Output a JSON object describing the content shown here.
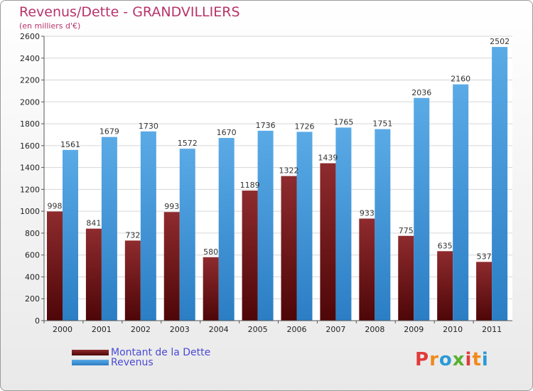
{
  "title": "Revenus/Dette - GRANDVILLIERS",
  "subtitle": "(en milliers d'€)",
  "logo": {
    "letters": [
      "P",
      "r",
      "o",
      "x",
      "i",
      "t",
      "i"
    ],
    "colors": [
      "#e23a3a",
      "#f08a1c",
      "#2a9ad6",
      "#5ab031",
      "#e23a3a",
      "#f08a1c",
      "#2a9ad6"
    ]
  },
  "colors": {
    "dette": "#7a1416",
    "revenus": "#3a96dc"
  },
  "chart_data": {
    "type": "bar",
    "title": "Revenus/Dette - GRANDVILLIERS",
    "subtitle": "(en milliers d'€)",
    "categories": [
      "2000",
      "2001",
      "2002",
      "2003",
      "2004",
      "2005",
      "2006",
      "2007",
      "2008",
      "2009",
      "2010",
      "2011"
    ],
    "series": [
      {
        "name": "Montant de la Dette",
        "values": [
          998,
          841,
          732,
          993,
          580,
          1189,
          1322,
          1439,
          933,
          775,
          635,
          537
        ]
      },
      {
        "name": "Revenus",
        "values": [
          1561,
          1679,
          1730,
          1572,
          1670,
          1736,
          1726,
          1765,
          1751,
          2036,
          2160,
          2502
        ]
      }
    ],
    "yticks": [
      "0",
      "200",
      "400",
      "600",
      "800",
      "1000",
      "1200",
      "1400",
      "1600",
      "1800",
      "2000",
      "2200",
      "2400",
      "2600"
    ],
    "ylim": [
      0,
      2600
    ],
    "grid": true,
    "legend": "bottom-left"
  }
}
